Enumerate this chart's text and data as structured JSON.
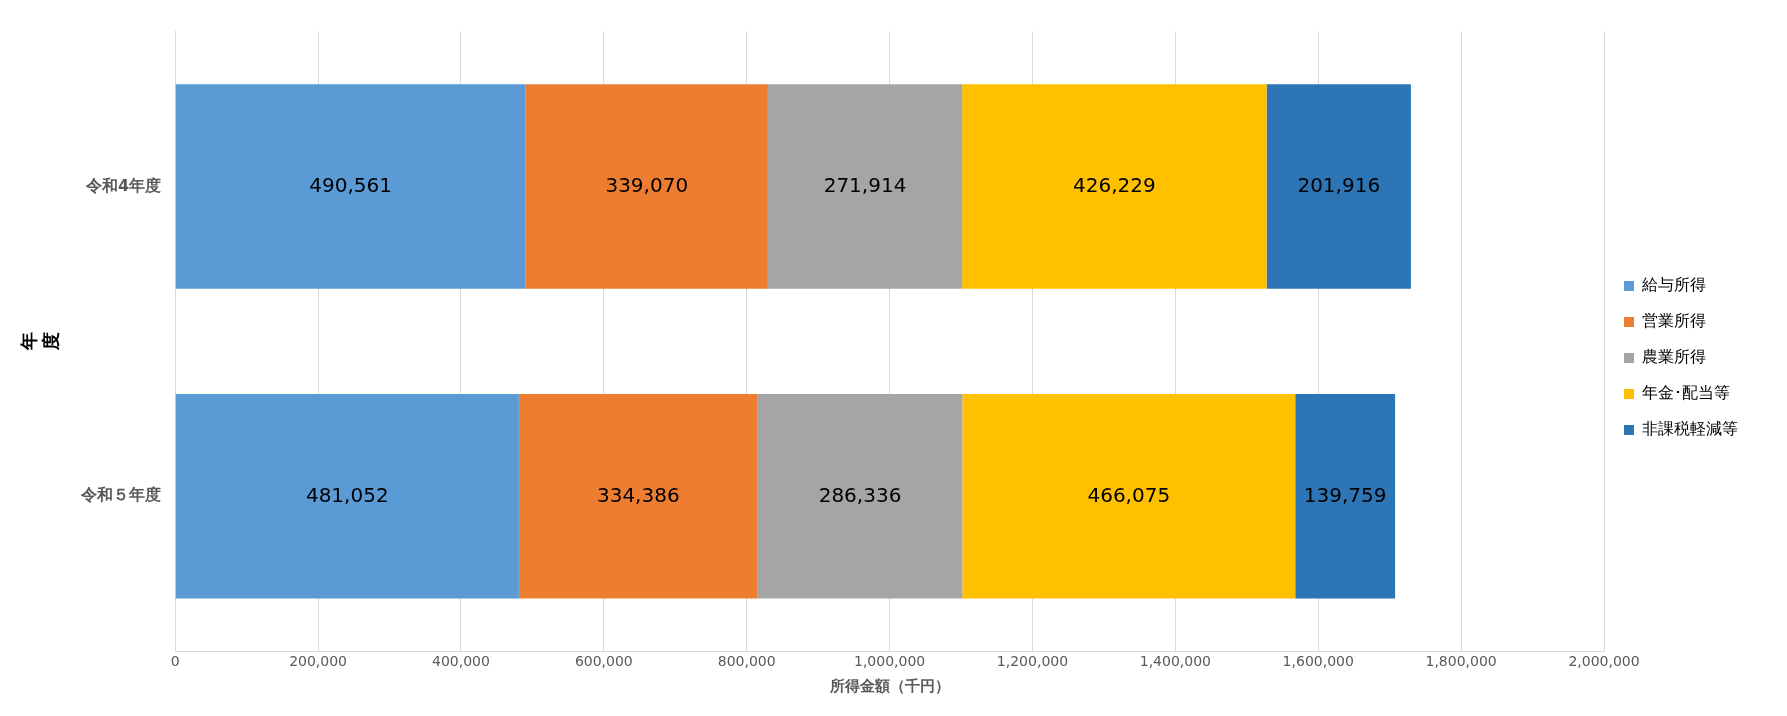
{
  "chart_data": {
    "type": "bar",
    "orientation": "horizontal",
    "stacked": true,
    "xlabel": "所得金額（千円）",
    "ylabel": "年度",
    "categories": [
      "令和4年度",
      "令和５年度"
    ],
    "series": [
      {
        "name": "給与所得",
        "color": "#5b9bd5",
        "values": [
          490561,
          481052
        ],
        "value_labels": [
          "490,561",
          "481,052"
        ]
      },
      {
        "name": "営業所得",
        "color": "#ed7d31",
        "values": [
          339070,
          334386
        ],
        "value_labels": [
          "339,070",
          "334,386"
        ]
      },
      {
        "name": "農業所得",
        "color": "#a5a5a5",
        "values": [
          271914,
          286336
        ],
        "value_labels": [
          "271,914",
          "286,336"
        ]
      },
      {
        "name": "年金･配当等",
        "color": "#ffc000",
        "values": [
          426229,
          466075
        ],
        "value_labels": [
          "426,229",
          "466,075"
        ]
      },
      {
        "name": "非課税軽減等",
        "color": "#2e75b6",
        "values": [
          201916,
          139759
        ],
        "value_labels": [
          "201,916",
          "139,759"
        ]
      }
    ],
    "xlim": [
      0,
      2000000
    ],
    "xticks": [
      {
        "value": 0,
        "label": "0"
      },
      {
        "value": 200000,
        "label": "200,000"
      },
      {
        "value": 400000,
        "label": "400,000"
      },
      {
        "value": 600000,
        "label": "600,000"
      },
      {
        "value": 800000,
        "label": "800,000"
      },
      {
        "value": 1000000,
        "label": "1,000,000"
      },
      {
        "value": 1200000,
        "label": "1,200,000"
      },
      {
        "value": 1400000,
        "label": "1,400,000"
      },
      {
        "value": 1600000,
        "label": "1,600,000"
      },
      {
        "value": 1800000,
        "label": "1,800,000"
      },
      {
        "value": 2000000,
        "label": "2,000,000"
      }
    ],
    "grid": "x",
    "legend": "right"
  }
}
